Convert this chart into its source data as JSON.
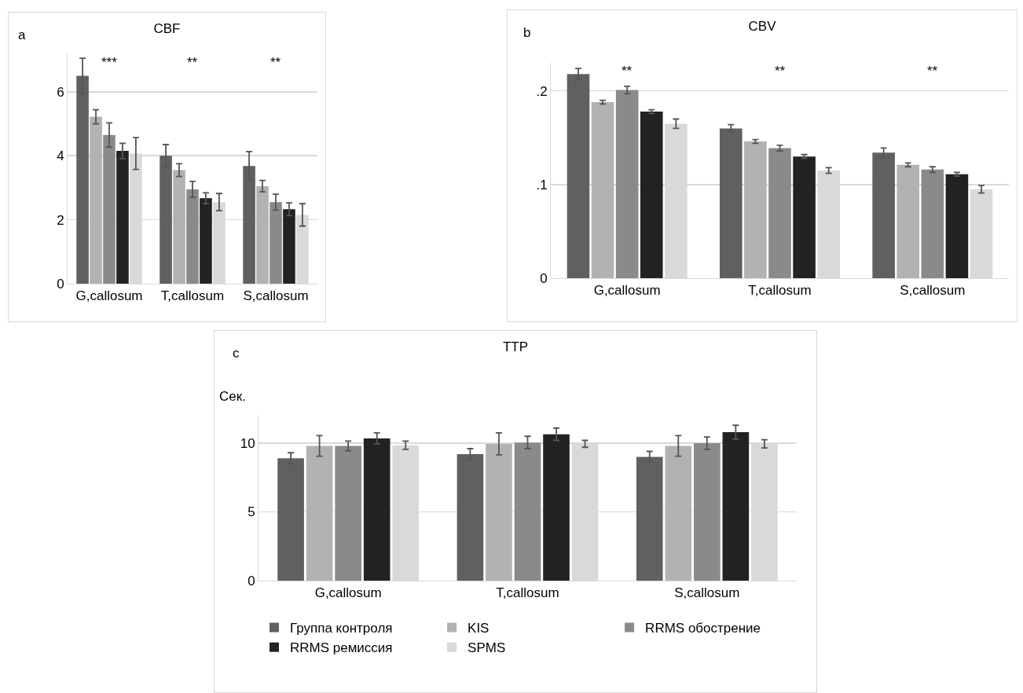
{
  "chart_data": [
    {
      "type": "bar",
      "title": "CBF",
      "annotations": [
        "a",
        "***",
        "**",
        "**"
      ],
      "categories": [
        "G,callosum",
        "T,callosum",
        "S,callosum"
      ],
      "series": [
        {
          "color": "#606060",
          "values": [
            6.5,
            4.0,
            3.68
          ],
          "errors": [
            0.55,
            0.35,
            0.45
          ]
        },
        {
          "color": "#b2b2b2",
          "values": [
            5.22,
            3.55,
            3.05
          ],
          "errors": [
            0.22,
            0.2,
            0.18
          ]
        },
        {
          "color": "#8a8a8a",
          "values": [
            4.65,
            2.95,
            2.55
          ],
          "errors": [
            0.38,
            0.25,
            0.25
          ]
        },
        {
          "color": "#222222",
          "values": [
            4.15,
            2.67,
            2.33
          ],
          "errors": [
            0.24,
            0.17,
            0.2
          ]
        },
        {
          "color": "#d9d9d9",
          "values": [
            4.07,
            2.55,
            2.15
          ],
          "errors": [
            0.5,
            0.27,
            0.35
          ]
        }
      ],
      "ylim": [
        0,
        7.2
      ],
      "yticks": [
        0,
        2,
        4,
        6
      ],
      "grid": "y",
      "legend": false
    },
    {
      "type": "bar",
      "title": "CBV",
      "annotations": [
        "b",
        "**",
        "**",
        "**"
      ],
      "categories": [
        "G,callosum",
        "T,callosum",
        "S,callosum"
      ],
      "series": [
        {
          "color": "#606060",
          "values": [
            0.218,
            0.16,
            0.134
          ],
          "errors": [
            0.006,
            0.004,
            0.005
          ]
        },
        {
          "color": "#b2b2b2",
          "values": [
            0.188,
            0.146,
            0.121
          ],
          "errors": [
            0.002,
            0.002,
            0.002
          ]
        },
        {
          "color": "#8a8a8a",
          "values": [
            0.201,
            0.139,
            0.116
          ],
          "errors": [
            0.004,
            0.003,
            0.003
          ]
        },
        {
          "color": "#222222",
          "values": [
            0.178,
            0.13,
            0.111
          ],
          "errors": [
            0.002,
            0.002,
            0.002
          ]
        },
        {
          "color": "#d9d9d9",
          "values": [
            0.165,
            0.115,
            0.095
          ],
          "errors": [
            0.005,
            0.003,
            0.004
          ]
        }
      ],
      "ylim": [
        0,
        0.23
      ],
      "yticks": [
        0,
        {
          "value": 0.1,
          "label": ".1"
        },
        {
          "value": 0.2,
          "label": ".2"
        }
      ],
      "grid": "y",
      "legend": false
    },
    {
      "type": "bar",
      "title": "TTP",
      "ylabel": "Сек.",
      "annotations": [
        "c"
      ],
      "categories": [
        "G,callosum",
        "T,callosum",
        "S,callosum"
      ],
      "series": [
        {
          "name": "Группа контроля",
          "color": "#606060",
          "values": [
            8.9,
            9.2,
            9.0
          ],
          "errors": [
            0.4,
            0.4,
            0.4
          ]
        },
        {
          "name": "KIS",
          "color": "#b2b2b2",
          "values": [
            9.8,
            9.95,
            9.8
          ],
          "errors": [
            0.75,
            0.8,
            0.75
          ]
        },
        {
          "name": "RRMS обострение",
          "color": "#8a8a8a",
          "values": [
            9.8,
            10.05,
            10.0
          ],
          "errors": [
            0.35,
            0.45,
            0.45
          ]
        },
        {
          "name": "RRMS ремиссия",
          "color": "#222222",
          "values": [
            10.35,
            10.65,
            10.8
          ],
          "errors": [
            0.4,
            0.45,
            0.5
          ]
        },
        {
          "name": "SPMS",
          "color": "#d9d9d9",
          "values": [
            9.85,
            9.95,
            9.95
          ],
          "errors": [
            0.3,
            0.25,
            0.3
          ]
        }
      ],
      "ylim": [
        0,
        12
      ],
      "yticks": [
        0,
        5,
        10
      ],
      "grid": "y",
      "legend": "bottom"
    }
  ]
}
